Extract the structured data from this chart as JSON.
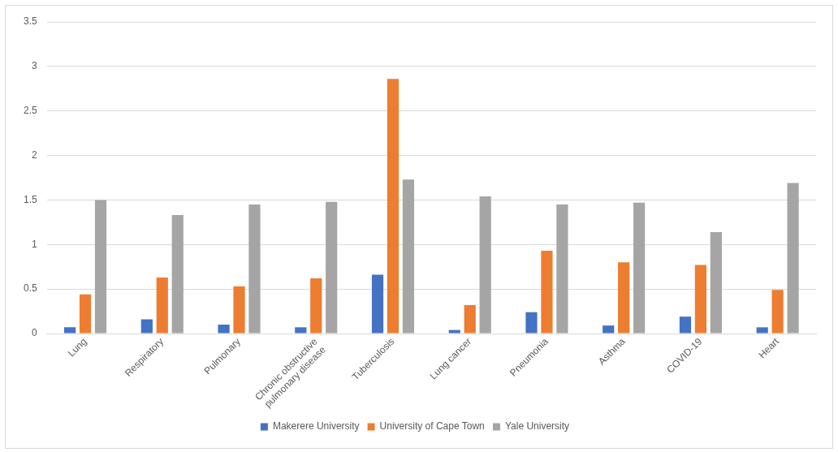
{
  "chart_data": {
    "type": "bar",
    "categories": [
      "Lung",
      "Respiratory",
      "Pulmonary",
      "Chronic obstructive pulmonary disease",
      "Tuberculosis",
      "Lung cancer",
      "Pneumonia",
      "Asthma",
      "COVID-19",
      "Heart"
    ],
    "series": [
      {
        "name": "Makerere University",
        "color": "#4472c4",
        "values": [
          0.07,
          0.16,
          0.1,
          0.07,
          0.66,
          0.04,
          0.24,
          0.09,
          0.19,
          0.07
        ]
      },
      {
        "name": "University of Cape Town",
        "color": "#ed7d31",
        "values": [
          0.44,
          0.63,
          0.53,
          0.62,
          2.86,
          0.32,
          0.93,
          0.8,
          0.77,
          0.49
        ]
      },
      {
        "name": "Yale University",
        "color": "#a5a5a5",
        "values": [
          1.5,
          1.33,
          1.45,
          1.48,
          1.73,
          1.54,
          1.45,
          1.47,
          1.14,
          1.69
        ]
      }
    ],
    "ylim": [
      0,
      3.5
    ],
    "yticks": [
      0,
      0.5,
      1,
      1.5,
      2,
      2.5,
      3,
      3.5
    ],
    "grid": "y",
    "legend": "bottom"
  }
}
